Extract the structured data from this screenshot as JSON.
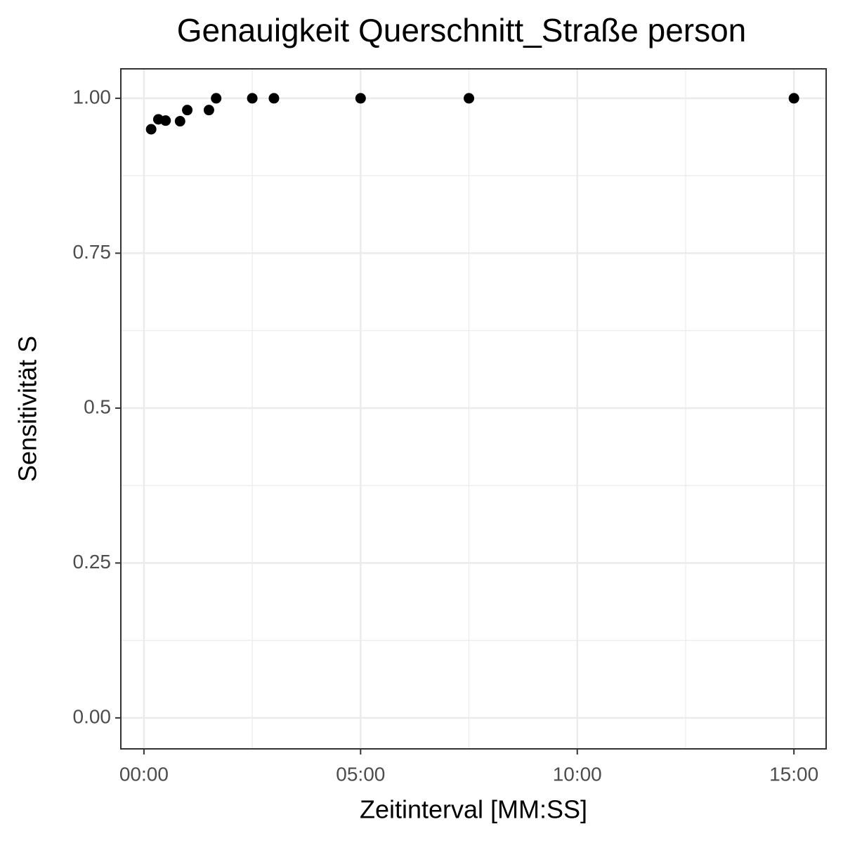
{
  "chart_data": {
    "type": "scatter",
    "title": "Genauigkeit Querschnitt_Straße person",
    "x_label": "Zeitinterval [MM:SS]",
    "y_label": "Sensitivität S",
    "x": [
      10,
      20,
      30,
      50,
      60,
      90,
      100,
      150,
      180,
      300,
      450,
      900
    ],
    "values": [
      0.95,
      0.966,
      0.964,
      0.963,
      0.981,
      0.981,
      1,
      1,
      1,
      1,
      1,
      1
    ],
    "color": "#000000",
    "xlim": [
      -32,
      944.6
    ],
    "ylim": [
      -0.05,
      1.0475
    ],
    "xticks": [
      {
        "value": 0,
        "label": "00:00"
      },
      {
        "value": 300,
        "label": "05:00"
      },
      {
        "value": 600,
        "label": "10:00"
      },
      {
        "value": 900,
        "label": "15:00"
      }
    ],
    "yticks": [
      {
        "value": 0,
        "label": "0.00"
      },
      0.25,
      0.5,
      0.75,
      {
        "value": 1,
        "label": "1.00"
      }
    ],
    "minor_xticks": [
      150,
      450,
      750
    ],
    "minor_yticks": [
      0.125,
      0.375,
      0.625,
      0.875
    ],
    "grid": true
  }
}
